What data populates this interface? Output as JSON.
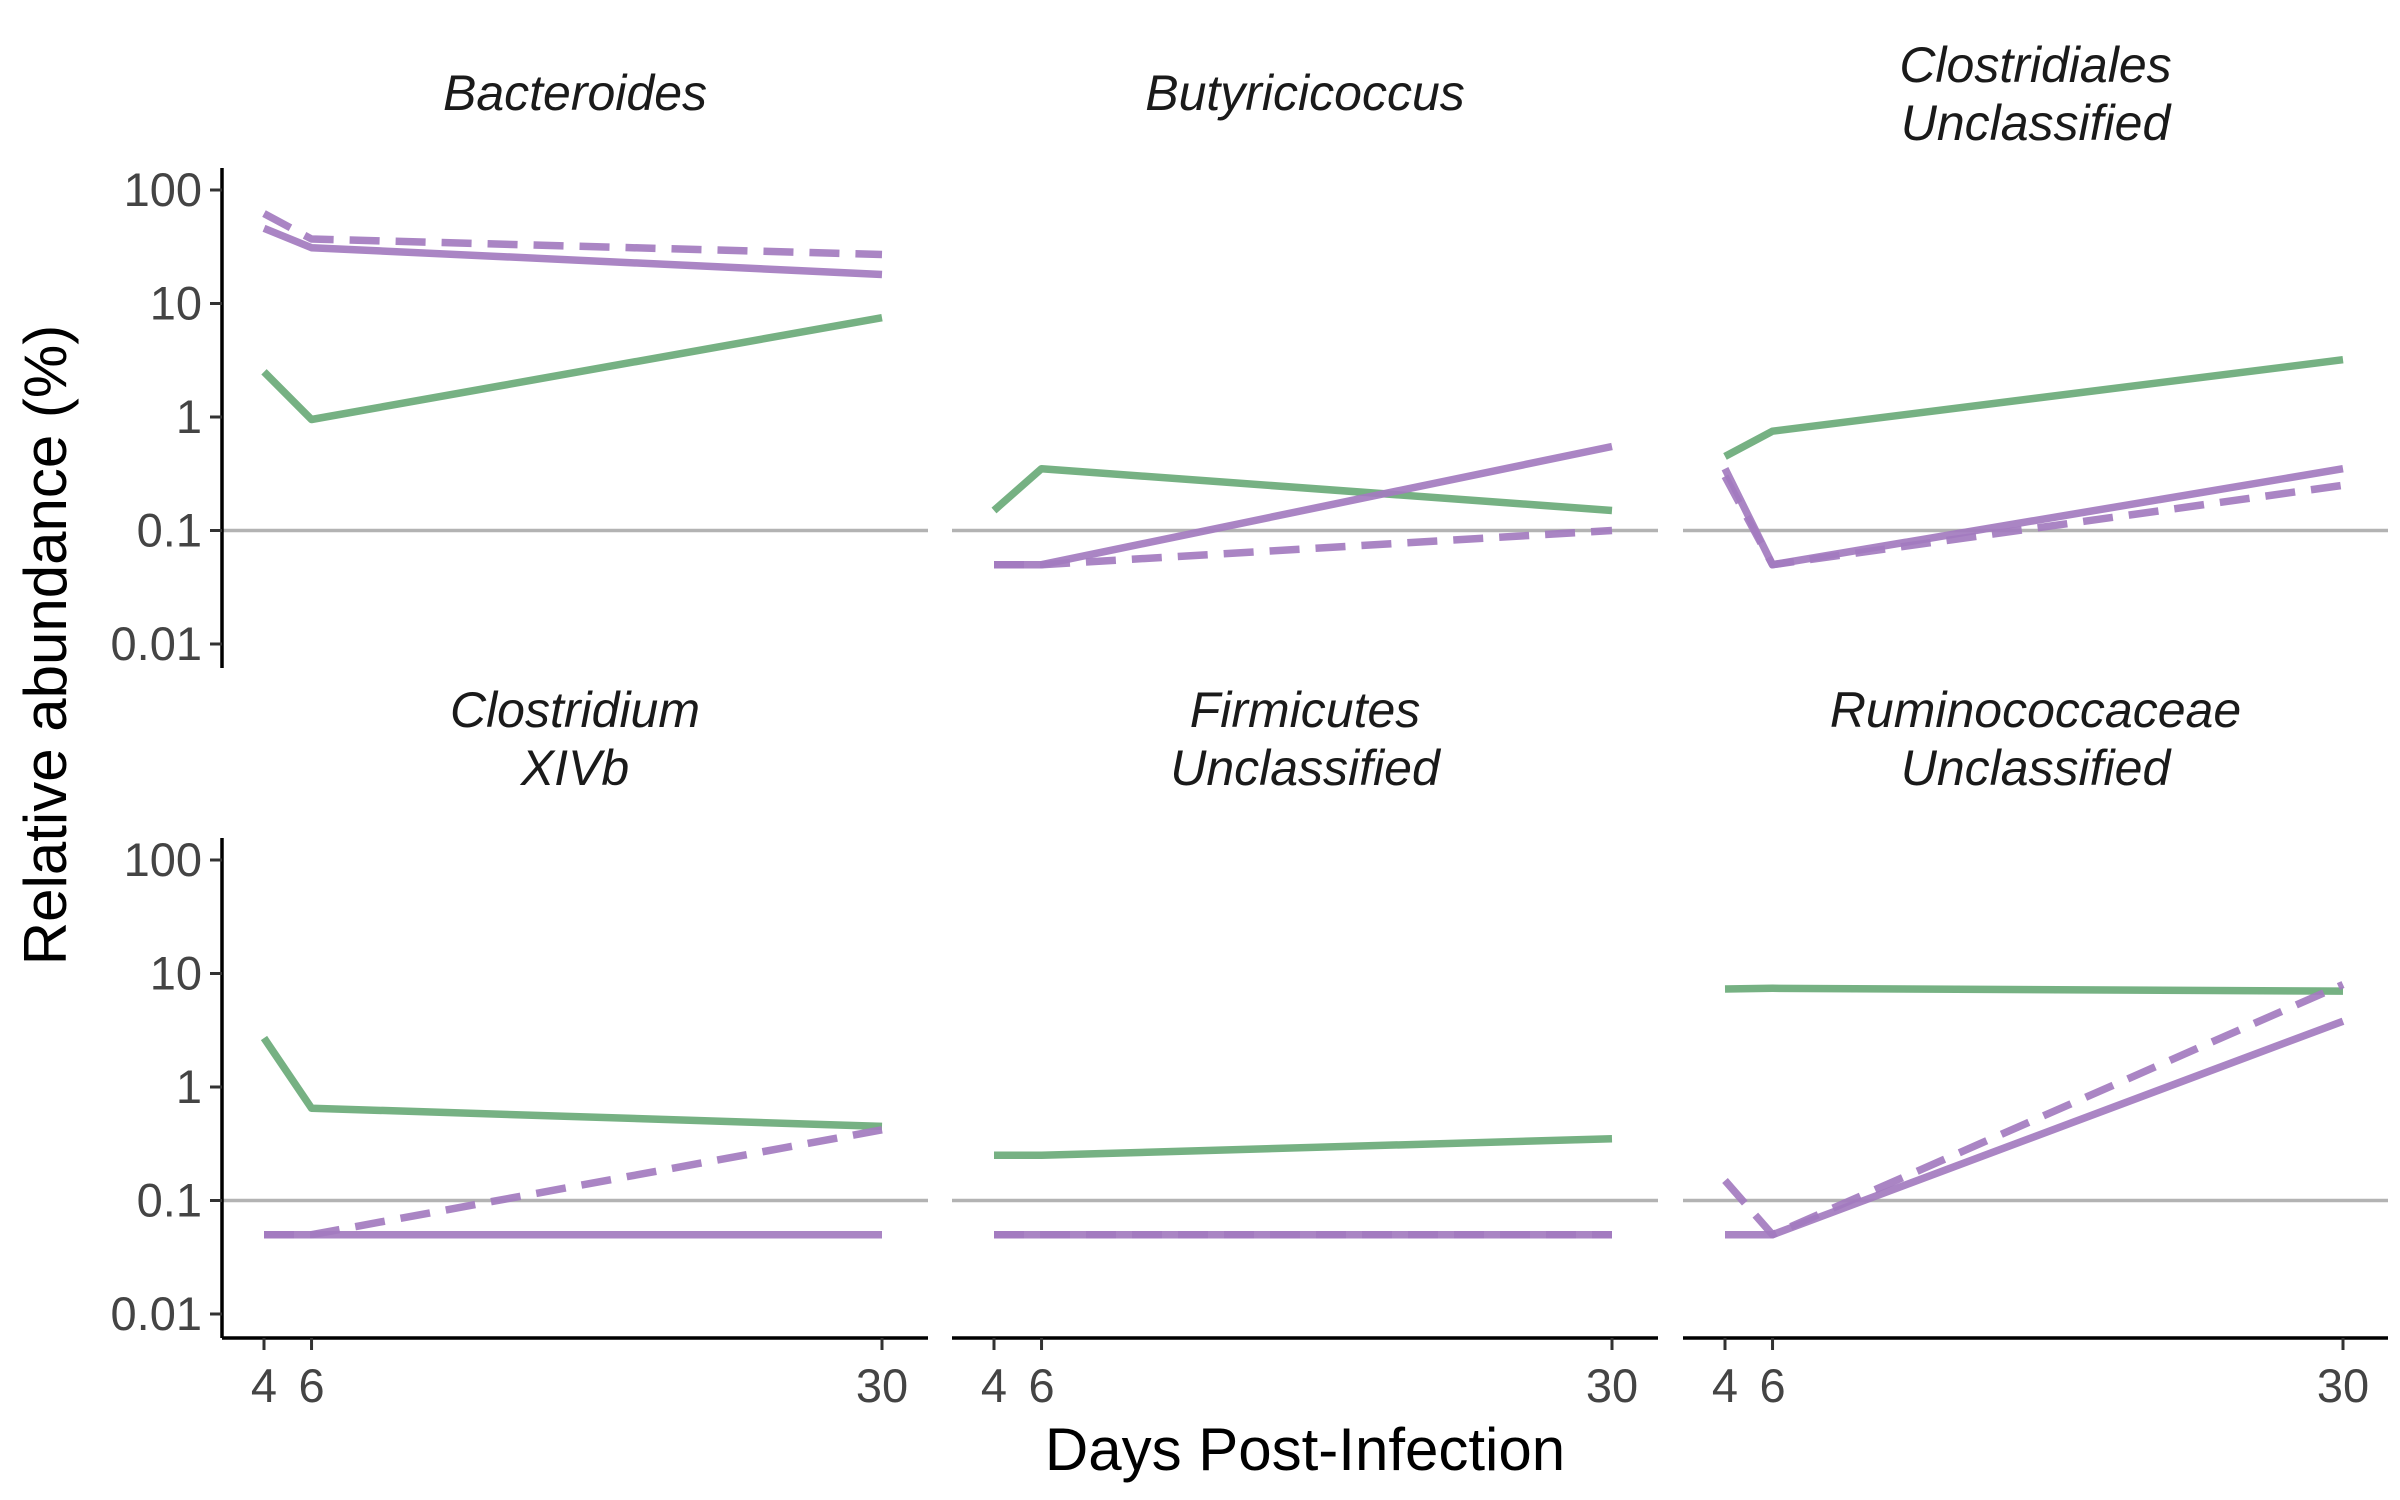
{
  "chart_data": {
    "type": "line",
    "xlabel": "Days Post-Infection",
    "ylabel": "Relative abundance (%)",
    "y_scale": "log10",
    "ylim": [
      0.006,
      160
    ],
    "xlim": [
      3,
      31
    ],
    "x_ticks": [
      4,
      6,
      30
    ],
    "y_ticks": [
      0.01,
      0.1,
      1,
      10,
      100
    ],
    "y_tick_labels": [
      "0.01",
      "0.1",
      "1",
      "10",
      "100"
    ],
    "reference_line": 0.1,
    "grid": false,
    "legend": "none",
    "colors": {
      "green": "#6aaa78",
      "purple": "#a37bbf"
    },
    "facets": [
      {
        "title": [
          "Bacteroides"
        ],
        "series": [
          {
            "color": "green",
            "dash": "solid",
            "x": [
              4,
              6,
              30
            ],
            "y": [
              2.5,
              0.95,
              7.5
            ]
          },
          {
            "color": "purple",
            "dash": "solid",
            "x": [
              4,
              6,
              30
            ],
            "y": [
              46,
              31,
              18
            ]
          },
          {
            "color": "purple",
            "dash": "dashed",
            "x": [
              4,
              6,
              30
            ],
            "y": [
              62,
              37,
              27
            ]
          }
        ]
      },
      {
        "title": [
          "Butyricicoccus"
        ],
        "series": [
          {
            "color": "green",
            "dash": "solid",
            "x": [
              4,
              6,
              30
            ],
            "y": [
              0.15,
              0.35,
              0.15
            ]
          },
          {
            "color": "purple",
            "dash": "solid",
            "x": [
              4,
              6,
              30
            ],
            "y": [
              0.05,
              0.05,
              0.55
            ]
          },
          {
            "color": "purple",
            "dash": "dashed",
            "x": [
              4,
              6,
              30
            ],
            "y": [
              0.05,
              0.05,
              0.1
            ]
          }
        ]
      },
      {
        "title": [
          "Clostridiales",
          "Unclassified"
        ],
        "series": [
          {
            "color": "green",
            "dash": "solid",
            "x": [
              4,
              6,
              30
            ],
            "y": [
              0.45,
              0.75,
              3.2
            ]
          },
          {
            "color": "purple",
            "dash": "solid",
            "x": [
              4,
              6,
              30
            ],
            "y": [
              0.35,
              0.05,
              0.35
            ]
          },
          {
            "color": "purple",
            "dash": "dashed",
            "x": [
              4,
              6,
              30
            ],
            "y": [
              0.3,
              0.05,
              0.25
            ]
          }
        ]
      },
      {
        "title": [
          "Clostridium",
          "XIVb"
        ],
        "series": [
          {
            "color": "green",
            "dash": "solid",
            "x": [
              4,
              6,
              30
            ],
            "y": [
              2.7,
              0.65,
              0.45
            ]
          },
          {
            "color": "purple",
            "dash": "solid",
            "x": [
              4,
              6,
              30
            ],
            "y": [
              0.05,
              0.05,
              0.05
            ]
          },
          {
            "color": "purple",
            "dash": "dashed",
            "x": [
              4,
              6,
              30
            ],
            "y": [
              0.05,
              0.05,
              0.42
            ]
          }
        ]
      },
      {
        "title": [
          "Firmicutes",
          "Unclassified"
        ],
        "series": [
          {
            "color": "green",
            "dash": "solid",
            "x": [
              4,
              6,
              30
            ],
            "y": [
              0.25,
              0.25,
              0.35
            ]
          },
          {
            "color": "purple",
            "dash": "solid",
            "x": [
              4,
              6,
              30
            ],
            "y": [
              0.05,
              0.05,
              0.05
            ]
          },
          {
            "color": "purple",
            "dash": "dashed",
            "x": [
              4,
              6,
              30
            ],
            "y": [
              0.05,
              0.05,
              0.05
            ]
          }
        ]
      },
      {
        "title": [
          "Ruminococcaceae",
          "Unclassified"
        ],
        "series": [
          {
            "color": "green",
            "dash": "solid",
            "x": [
              4,
              6,
              30
            ],
            "y": [
              7.3,
              7.4,
              7.0
            ]
          },
          {
            "color": "purple",
            "dash": "solid",
            "x": [
              4,
              6,
              30
            ],
            "y": [
              0.05,
              0.05,
              3.8
            ]
          },
          {
            "color": "purple",
            "dash": "dashed",
            "x": [
              4,
              6,
              30
            ],
            "y": [
              0.15,
              0.05,
              8.0
            ]
          }
        ]
      }
    ]
  }
}
